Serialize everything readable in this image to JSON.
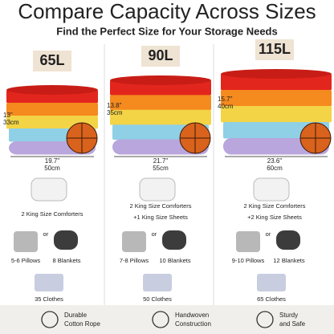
{
  "header": {
    "title": "Compare Capacity Across Sizes",
    "subtitle": "Find the Perfect Size for Your Storage Needs"
  },
  "columns": [
    {
      "size": "65L",
      "height_in": "13\"",
      "height_cm": "33cm",
      "width_in": "19.7\"",
      "width_cm": "50cm",
      "comforters": "2 King Size Comforters",
      "pillows": "5-6 Pillows",
      "or": "or",
      "blankets": "8 Blankets",
      "clothes": "35 Clothes"
    },
    {
      "size": "90L",
      "height_in": "13.8\"",
      "height_cm": "35cm",
      "width_in": "21.7\"",
      "width_cm": "55cm",
      "comforters": "2 King Size Comforters",
      "sheets": "+1 King Size Sheets",
      "pillows": "7-8 Pillows",
      "or": "or",
      "blankets": "10 Blankets",
      "clothes": "50 Clothes"
    },
    {
      "size": "115L",
      "height_in": "15.7\"",
      "height_cm": "40cm",
      "width_in": "23.6\"",
      "width_cm": "60cm",
      "comforters": "2 King Size Comforters",
      "sheets": "+2 King Size Sheets",
      "pillows": "9-10 Pillows",
      "or": "or",
      "blankets": "12 Blankets",
      "clothes": "65 Clothes"
    }
  ],
  "features": [
    {
      "line1": "Durable",
      "line2": "Cotton Rope"
    },
    {
      "line1": "Handwoven",
      "line2": "Construction"
    },
    {
      "line1": "Sturdy",
      "line2": "and Safe"
    }
  ]
}
